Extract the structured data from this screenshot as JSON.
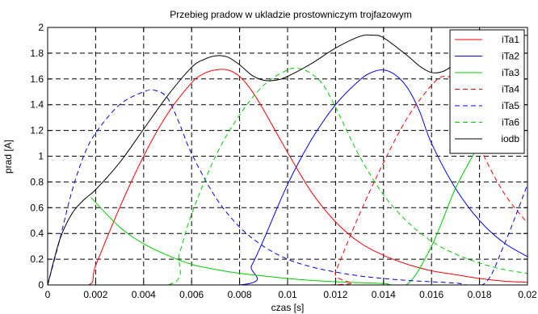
{
  "chart_data": {
    "type": "line",
    "title": "Przebieg pradow w ukladzie prostowniczym trojfazowym",
    "xlabel": "czas [s]",
    "ylabel": "prad [A]",
    "xlim": [
      0,
      0.02
    ],
    "ylim": [
      0,
      2
    ],
    "grid": true,
    "legend_position": "top-right",
    "x_ticks": [
      0,
      0.002,
      0.004,
      0.006,
      0.008,
      0.01,
      0.012,
      0.014,
      0.016,
      0.018,
      0.02
    ],
    "x_tick_labels": [
      "0",
      "0.002",
      "0.004",
      "0.006",
      "0.008",
      "0.01",
      "0.012",
      "0.014",
      "0.016",
      "0.018",
      "0.02"
    ],
    "y_ticks": [
      0,
      0.2,
      0.4,
      0.6,
      0.8,
      1,
      1.2,
      1.4,
      1.6,
      1.8,
      2
    ],
    "y_tick_labels": [
      "0",
      "0.2",
      "0.4",
      "0.6",
      "0.8",
      "1",
      "1.2",
      "1.4",
      "1.6",
      "1.8",
      "2"
    ],
    "series": [
      {
        "name": "iTa1",
        "color": "#ff0000",
        "dash": "solid",
        "x": [
          0,
          0.0017,
          0.002,
          0.003,
          0.004,
          0.005,
          0.006,
          0.0065,
          0.007,
          0.0075,
          0.008,
          0.0085,
          0.009,
          0.01,
          0.011,
          0.012,
          0.013,
          0.014,
          0.015,
          0.016,
          0.017,
          0.018,
          0.019,
          0.02
        ],
        "y": [
          0,
          0,
          0.15,
          0.6,
          1.0,
          1.33,
          1.57,
          1.64,
          1.67,
          1.67,
          1.62,
          1.51,
          1.36,
          1.03,
          0.72,
          0.49,
          0.33,
          0.23,
          0.16,
          0.11,
          0.08,
          0.05,
          0.03,
          0.02
        ]
      },
      {
        "name": "iTa2",
        "color": "#0000ff",
        "dash": "solid",
        "x": [
          0,
          0.008,
          0.0085,
          0.009,
          0.01,
          0.011,
          0.012,
          0.013,
          0.0135,
          0.014,
          0.0145,
          0.015,
          0.0155,
          0.016,
          0.017,
          0.018,
          0.019,
          0.02
        ],
        "y": [
          0,
          0,
          0.15,
          0.35,
          0.78,
          1.13,
          1.4,
          1.59,
          1.65,
          1.67,
          1.63,
          1.53,
          1.35,
          1.1,
          0.75,
          0.5,
          0.33,
          0.22
        ]
      },
      {
        "name": "iTa3",
        "color": "#00cc00",
        "dash": "solid",
        "x": [
          0.0018,
          0.003,
          0.004,
          0.005,
          0.006,
          0.007,
          0.008,
          0.009,
          0.01,
          0.011,
          0.012,
          0.013,
          0.014,
          0.015,
          0.016,
          0.017,
          0.018,
          0.0185
        ],
        "y": [
          0.68,
          0.45,
          0.32,
          0.23,
          0.16,
          0.12,
          0.09,
          0.07,
          0.05,
          0.035,
          0.025,
          0.018,
          0.012,
          0.008,
          0.3,
          0.75,
          1.1,
          1.3
        ]
      },
      {
        "name": "iTa4",
        "color": "#ff0000",
        "dash": "dashed",
        "x": [
          0,
          0.0118,
          0.012,
          0.013,
          0.014,
          0.015,
          0.016,
          0.0165,
          0.017,
          0.0175,
          0.018,
          0.019,
          0.02
        ],
        "y": [
          0,
          0,
          0.1,
          0.55,
          0.95,
          1.3,
          1.55,
          1.62,
          1.58,
          1.4,
          1.08,
          0.72,
          0.48
        ]
      },
      {
        "name": "iTa5",
        "color": "#0000ff",
        "dash": "dashed",
        "x": [
          0,
          0.0005,
          0.001,
          0.0015,
          0.002,
          0.003,
          0.004,
          0.0045,
          0.005,
          0.0055,
          0.006,
          0.007,
          0.008,
          0.009,
          0.01,
          0.011,
          0.012,
          0.013,
          0.014,
          0.015,
          0.016,
          0.017,
          0.0182,
          0.019,
          0.02
        ],
        "y": [
          0,
          0.35,
          0.72,
          1.0,
          1.18,
          1.4,
          1.5,
          1.51,
          1.45,
          1.25,
          1.02,
          0.68,
          0.45,
          0.3,
          0.2,
          0.14,
          0.1,
          0.07,
          0.05,
          0.035,
          0.025,
          0.015,
          0.01,
          0.3,
          0.78
        ]
      },
      {
        "name": "iTa6",
        "color": "#00cc00",
        "dash": "dashed",
        "x": [
          0,
          0.005,
          0.0055,
          0.006,
          0.007,
          0.008,
          0.009,
          0.01,
          0.0105,
          0.011,
          0.0115,
          0.012,
          0.013,
          0.014,
          0.015,
          0.016,
          0.017,
          0.018,
          0.019,
          0.02
        ],
        "y": [
          0,
          0,
          0.25,
          0.55,
          1.0,
          1.32,
          1.55,
          1.67,
          1.68,
          1.64,
          1.55,
          1.38,
          1.0,
          0.7,
          0.49,
          0.34,
          0.24,
          0.17,
          0.12,
          0.09
        ]
      },
      {
        "name": "iodb",
        "color": "#000000",
        "dash": "solid",
        "x": [
          0,
          0.0005,
          0.001,
          0.0015,
          0.002,
          0.003,
          0.004,
          0.005,
          0.006,
          0.0065,
          0.007,
          0.0075,
          0.008,
          0.0085,
          0.009,
          0.0095,
          0.01,
          0.011,
          0.012,
          0.013,
          0.0135,
          0.014,
          0.015,
          0.0155,
          0.016,
          0.0165,
          0.017,
          0.018,
          0.019,
          0.02
        ],
        "y": [
          0,
          0.35,
          0.55,
          0.66,
          0.74,
          0.95,
          1.21,
          1.47,
          1.69,
          1.75,
          1.78,
          1.77,
          1.71,
          1.63,
          1.59,
          1.59,
          1.62,
          1.72,
          1.84,
          1.93,
          1.94,
          1.92,
          1.78,
          1.7,
          1.65,
          1.66,
          1.72,
          1.85,
          1.92,
          1.94
        ]
      }
    ]
  }
}
